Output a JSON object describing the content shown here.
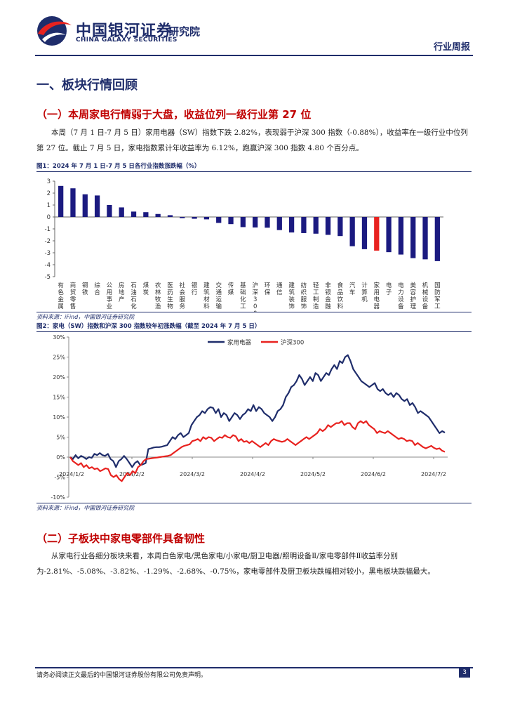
{
  "header": {
    "brand_cn": "中国银河证券",
    "brand_institute": "研究院",
    "brand_en": "CHINA GALAXY SECURITIES",
    "report_type": "行业周报"
  },
  "section1": {
    "title": "一、板块行情回顾"
  },
  "sub1": {
    "title": "（一）本周家电行情弱于大盘，收益位列一级行业第 27 位",
    "para": "本周（7 月 1 日-7 月 5 日）家用电器（SW）指数下跌 2.82%，表现弱于沪深 300 指数（-0.88%），收益率在一级行业中位列第 27 位。截止 7 月 5 日，家电指数累计年收益率为 6.12%，跑赢沪深 300 指数 4.80 个百分点。"
  },
  "fig1": {
    "title": "图1：2024 年 7 月 1 日-7 月 5 日各行业指数涨跌幅（%）",
    "source": "资料来源：iFind，中国银河证券研究院"
  },
  "fig2": {
    "title": "图2：家电（SW）指数和沪深 300 指数较年初涨跌幅（截至 2024 年 7 月 5 日）",
    "source": "资料来源：iFind，中国银河证券研究院"
  },
  "sub2": {
    "title": "（二）子板块中家电零部件具备韧性",
    "para": "从家电行业各细分板块来看，本周白色家电/黑色家电/小家电/厨卫电器/照明设备Ⅱ/家电零部件Ⅱ收益率分别为-2.81%、-5.08%、-3.82%、-1.29%、-2.68%、-0.75%，家电零部件及厨卫板块跌幅相对较小，黑电板块跌幅最大。"
  },
  "footer": {
    "disclaimer": "请务必阅读正文最后的中国银河证券股份有限公司免责声明。",
    "page": "3"
  },
  "colors": {
    "navy": "#1f2d6b",
    "red": "#e8221f",
    "bar": "#1b1a80"
  },
  "chart_data": [
    {
      "type": "bar",
      "title": "2024 年 7 月 1 日-7 月 5 日各行业指数涨跌幅（%）",
      "ylim": [
        -5,
        3
      ],
      "yticks": [
        "3",
        "2",
        "1",
        "0",
        "-1",
        "-2",
        "-3",
        "-4",
        "-5"
      ],
      "highlight": "家用电器",
      "categories": [
        "有色金属",
        "商贸零售",
        "钢铁",
        "综合",
        "公用事业",
        "房地产",
        "石油石化",
        "煤炭",
        "农林牧渔",
        "医药生物",
        "社会服务",
        "银行",
        "建筑材料",
        "交通运输",
        "传媒",
        "基础化工",
        "沪深300",
        "环保",
        "通信",
        "建筑装饰",
        "纺织服饰",
        "轻工制造",
        "非银金融",
        "食品饮料",
        "汽车",
        "计算机",
        "家用电器",
        "电子",
        "电力设备",
        "美容护理",
        "机械设备",
        "国防军工"
      ],
      "values": [
        2.6,
        2.4,
        1.9,
        1.8,
        1.0,
        0.8,
        0.45,
        0.4,
        0.25,
        0.15,
        -0.1,
        -0.15,
        -0.2,
        -0.5,
        -0.6,
        -0.85,
        -0.88,
        -0.9,
        -1.1,
        -1.3,
        -1.35,
        -1.4,
        -1.5,
        -1.6,
        -2.45,
        -2.7,
        -2.82,
        -2.95,
        -3.15,
        -3.45,
        -3.55,
        -3.7
      ]
    },
    {
      "type": "line",
      "ylim": [
        -10,
        30
      ],
      "yticks": [
        "30%",
        "25%",
        "20%",
        "15%",
        "10%",
        "5%",
        "0%",
        "-5%",
        "-10%"
      ],
      "xticks": [
        "2024/1/2",
        "2024/2/2",
        "2024/3/2",
        "2024/4/2",
        "2024/5/2",
        "2024/6/2",
        "2024/7/2"
      ],
      "series": [
        {
          "name": "家用电器",
          "color": "#1f2d6b",
          "values": [
            0.0,
            -0.5,
            0.5,
            -0.3,
            0.3,
            0.0,
            -0.5,
            0.0,
            -0.2,
            0.8,
            0.5,
            1.0,
            0.5,
            0.3,
            0.8,
            -0.5,
            -1.0,
            -2.5,
            -1.0,
            -0.5,
            0.3,
            -0.5,
            -1.5,
            -2.5,
            -1.5,
            -1.0,
            -2.0,
            -1.8,
            -1.5,
            2.0,
            2.2,
            2.4,
            2.5,
            2.5,
            2.6,
            2.8,
            3.0,
            4.0,
            5.0,
            4.5,
            5.5,
            6.0,
            5.0,
            5.5,
            6.0,
            8.0,
            9.0,
            10.0,
            10.5,
            11.5,
            11.0,
            12.0,
            12.5,
            12.3,
            11.0,
            12.0,
            10.0,
            11.0,
            10.5,
            9.0,
            10.0,
            11.0,
            10.5,
            9.5,
            10.5,
            11.0,
            12.0,
            11.5,
            13.0,
            11.5,
            12.5,
            12.0,
            11.0,
            10.5,
            10.0,
            9.0,
            10.0,
            11.5,
            12.0,
            13.0,
            15.0,
            16.0,
            17.5,
            18.0,
            19.0,
            20.5,
            19.5,
            18.0,
            19.0,
            20.0,
            19.0,
            21.0,
            20.5,
            19.0,
            20.0,
            21.0,
            20.5,
            22.0,
            23.0,
            22.0,
            24.0,
            23.5,
            25.0,
            25.5,
            24.0,
            22.0,
            21.0,
            20.0,
            19.0,
            18.5,
            18.0,
            17.5,
            18.0,
            18.5,
            17.0,
            16.5,
            17.0,
            16.0,
            15.5,
            16.0,
            15.0,
            16.0,
            15.5,
            14.5,
            14.0,
            14.5,
            13.0,
            13.5,
            12.5,
            11.0,
            11.5,
            11.0,
            10.5,
            10.0,
            9.0,
            8.0,
            7.0,
            6.0,
            6.5,
            6.12
          ]
        },
        {
          "name": "沪深300",
          "color": "#e8221f",
          "values": [
            0.0,
            -1.0,
            -1.5,
            -2.0,
            -1.5,
            -2.5,
            -2.0,
            -2.8,
            -2.5,
            -3.0,
            -2.8,
            -3.5,
            -3.2,
            -2.8,
            -3.0,
            -4.5,
            -5.0,
            -4.5,
            -5.5,
            -6.0,
            -5.0,
            -4.0,
            -4.5,
            -3.5,
            -4.0,
            -2.5,
            -2.0,
            -1.0,
            -0.5,
            -0.4,
            -0.3,
            -0.2,
            -0.1,
            0.0,
            0.1,
            0.2,
            0.3,
            0.5,
            1.0,
            1.5,
            2.0,
            2.5,
            2.8,
            3.0,
            3.2,
            4.0,
            4.2,
            4.5,
            4.0,
            5.0,
            4.5,
            5.0,
            4.8,
            4.0,
            4.5,
            5.0,
            4.8,
            5.5,
            5.0,
            4.8,
            5.5,
            5.2,
            4.0,
            4.5,
            3.8,
            4.0,
            3.5,
            4.0,
            3.5,
            3.0,
            2.5,
            3.0,
            3.5,
            3.0,
            4.0,
            4.5,
            4.2,
            4.0,
            3.8,
            4.0,
            4.5,
            4.0,
            3.5,
            3.0,
            3.5,
            4.0,
            4.5,
            5.0,
            4.5,
            5.0,
            5.5,
            6.0,
            7.0,
            6.5,
            7.0,
            8.0,
            7.5,
            8.0,
            8.5,
            8.5,
            9.0,
            8.0,
            8.5,
            8.5,
            7.5,
            7.0,
            8.5,
            9.0,
            8.5,
            9.0,
            8.0,
            7.5,
            7.0,
            6.0,
            6.5,
            6.2,
            6.0,
            6.5,
            6.0,
            5.5,
            5.0,
            4.5,
            4.8,
            4.5,
            4.0,
            4.2,
            4.0,
            3.0,
            3.5,
            3.0,
            2.5,
            2.2,
            2.5,
            2.8,
            2.3,
            2.0,
            2.2,
            1.6,
            1.32
          ]
        }
      ]
    }
  ]
}
